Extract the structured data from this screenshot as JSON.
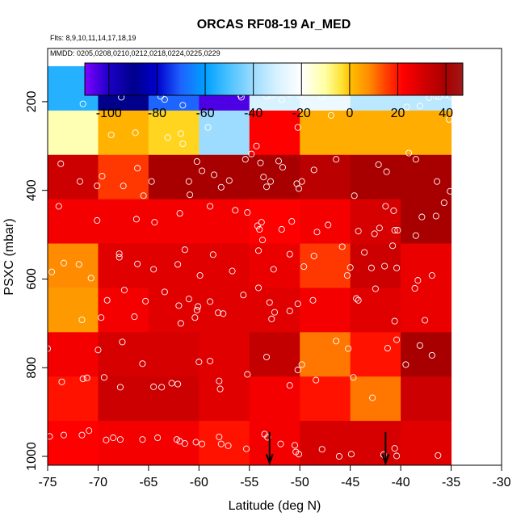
{
  "chart_data": {
    "type": "heatmap",
    "title": "ORCAS RF08-19 Ar_MED",
    "flights_note": "Flts: 8,9,10,11,14,17,18,19",
    "dates_note": "MMDD: 0205,0208,0210,0212,0218,0224,0225,0229",
    "xlabel": "Latitude (deg N)",
    "ylabel": "PSXC (mbar)",
    "xlim": [
      -75,
      -30
    ],
    "ylim": [
      1020,
      80
    ],
    "x_ticks": [
      -75,
      -70,
      -65,
      -60,
      -55,
      -50,
      -45,
      -40,
      -35,
      -30
    ],
    "y_ticks": [
      200,
      400,
      600,
      800,
      1000
    ],
    "colorbar": {
      "range": [
        -110,
        47
      ],
      "ticks": [
        -100,
        -80,
        -60,
        -40,
        -20,
        0,
        20,
        40
      ],
      "stops": [
        {
          "v": -110,
          "color": "#7f00ff"
        },
        {
          "v": -100,
          "color": "#1c00c8"
        },
        {
          "v": -90,
          "color": "#00008b"
        },
        {
          "v": -80,
          "color": "#0000cd"
        },
        {
          "v": -70,
          "color": "#1e64ff"
        },
        {
          "v": -60,
          "color": "#00a0ff"
        },
        {
          "v": -50,
          "color": "#4cc2ff"
        },
        {
          "v": -40,
          "color": "#9ddcff"
        },
        {
          "v": -30,
          "color": "#d8f2ff"
        },
        {
          "v": -20,
          "color": "#ffffff"
        },
        {
          "v": -10,
          "color": "#ffffa0"
        },
        {
          "v": -3,
          "color": "#ffe030"
        },
        {
          "v": 0,
          "color": "#ffc000"
        },
        {
          "v": 8,
          "color": "#ff8c00"
        },
        {
          "v": 15,
          "color": "#ff4000"
        },
        {
          "v": 22,
          "color": "#ff0000"
        },
        {
          "v": 32,
          "color": "#cc0000"
        },
        {
          "v": 40,
          "color": "#a80000"
        },
        {
          "v": 47,
          "color": "#a01818"
        }
      ]
    },
    "lat_edges": [
      -75,
      -70,
      -65,
      -60,
      -55,
      -50,
      -45,
      -40,
      -35
    ],
    "pressure_rows": [
      {
        "p": [
          120,
          220
        ],
        "values": [
          -55,
          -90,
          -70,
          -105,
          -30,
          -25,
          -35,
          -35
        ]
      },
      {
        "p": [
          220,
          320
        ],
        "values": [
          -12,
          2,
          -2,
          -40,
          22,
          3,
          3,
          3
        ]
      },
      {
        "p": [
          320,
          420
        ],
        "values": [
          32,
          16,
          40,
          40,
          40,
          36,
          40,
          40
        ]
      },
      {
        "p": [
          420,
          520
        ],
        "values": [
          24,
          24,
          24,
          24,
          22,
          24,
          30,
          40
        ]
      },
      {
        "p": [
          520,
          620
        ],
        "values": [
          8,
          28,
          28,
          28,
          26,
          16,
          32,
          26
        ]
      },
      {
        "p": [
          620,
          720
        ],
        "values": [
          6,
          24,
          28,
          28,
          28,
          24,
          28,
          26
        ]
      },
      {
        "p": [
          720,
          820
        ],
        "values": [
          24,
          30,
          30,
          28,
          34,
          10,
          20,
          40
        ]
      },
      {
        "p": [
          820,
          920
        ],
        "values": [
          20,
          32,
          32,
          28,
          24,
          20,
          10,
          32
        ]
      },
      {
        "p": [
          920,
          1020
        ],
        "values": [
          22,
          24,
          24,
          20,
          24,
          30,
          30,
          28
        ]
      }
    ],
    "points": [
      [
        -71.5,
        205
      ],
      [
        -67.7,
        190
      ],
      [
        -65.2,
        178
      ],
      [
        -63.8,
        188
      ],
      [
        -63.4,
        195
      ],
      [
        -61.6,
        208
      ],
      [
        -60.2,
        178
      ],
      [
        -55.7,
        175
      ],
      [
        -55.9,
        185
      ],
      [
        -55.8,
        190
      ],
      [
        -53.3,
        188
      ],
      [
        -52.8,
        186
      ],
      [
        -51.8,
        196
      ],
      [
        -51.0,
        183
      ],
      [
        -50.0,
        185
      ],
      [
        -47.8,
        189
      ],
      [
        -39.4,
        212
      ],
      [
        -38.1,
        210
      ],
      [
        -37.2,
        191
      ],
      [
        -36.2,
        189
      ],
      [
        -35.6,
        185
      ],
      [
        -35.1,
        188
      ],
      [
        -36.5,
        188
      ],
      [
        -68.7,
        275
      ],
      [
        -66.3,
        270
      ],
      [
        -63.1,
        281
      ],
      [
        -61.6,
        295
      ],
      [
        -59.1,
        258
      ],
      [
        -50.2,
        258
      ],
      [
        -46.9,
        231
      ],
      [
        -35.2,
        240
      ],
      [
        -73.7,
        340
      ],
      [
        -71.8,
        380
      ],
      [
        -69.6,
        368
      ],
      [
        -70.1,
        390
      ],
      [
        -66.1,
        350
      ],
      [
        -67.5,
        390
      ],
      [
        -65.5,
        412
      ],
      [
        -64.7,
        380
      ],
      [
        -61.8,
        272
      ],
      [
        -61.0,
        380
      ],
      [
        -60.9,
        410
      ],
      [
        -60.2,
        335
      ],
      [
        -59.7,
        356
      ],
      [
        -58.5,
        365
      ],
      [
        -57.8,
        393
      ],
      [
        -57.0,
        378
      ],
      [
        -55.4,
        330
      ],
      [
        -54.8,
        318
      ],
      [
        -54.3,
        300
      ],
      [
        -53.9,
        338
      ],
      [
        -53.6,
        370
      ],
      [
        -52.9,
        380
      ],
      [
        -53.3,
        392
      ],
      [
        -52.1,
        334
      ],
      [
        -51.7,
        348
      ],
      [
        -50.3,
        385
      ],
      [
        -50.1,
        396
      ],
      [
        -49.8,
        380
      ],
      [
        -48.6,
        354
      ],
      [
        -46.4,
        330
      ],
      [
        -44.6,
        412
      ],
      [
        -42.2,
        342
      ],
      [
        -41.4,
        358
      ],
      [
        -39.2,
        316
      ],
      [
        -38.5,
        330
      ],
      [
        -36.4,
        380
      ],
      [
        -35.1,
        402
      ],
      [
        -73.9,
        436
      ],
      [
        -70.1,
        468
      ],
      [
        -66.2,
        465
      ],
      [
        -64.4,
        472
      ],
      [
        -61.9,
        452
      ],
      [
        -58.9,
        436
      ],
      [
        -56.4,
        445
      ],
      [
        -55.2,
        450
      ],
      [
        -54.2,
        480
      ],
      [
        -54.0,
        488
      ],
      [
        -53.8,
        472
      ],
      [
        -51.8,
        488
      ],
      [
        -50.8,
        470
      ],
      [
        -48.3,
        494
      ],
      [
        -47.2,
        478
      ],
      [
        -44.2,
        492
      ],
      [
        -42.6,
        498
      ],
      [
        -42.1,
        485
      ],
      [
        -41.5,
        436
      ],
      [
        -40.7,
        446
      ],
      [
        -40.6,
        490
      ],
      [
        -40.3,
        490
      ],
      [
        -38.5,
        502
      ],
      [
        -37.9,
        460
      ],
      [
        -36.5,
        458
      ],
      [
        -35.7,
        428
      ],
      [
        -74.6,
        584
      ],
      [
        -73.4,
        564
      ],
      [
        -71.9,
        567
      ],
      [
        -70.7,
        598
      ],
      [
        -67.9,
        543
      ],
      [
        -67.9,
        551
      ],
      [
        -66.1,
        566
      ],
      [
        -64.5,
        578
      ],
      [
        -62.1,
        567
      ],
      [
        -61.4,
        534
      ],
      [
        -59.9,
        592
      ],
      [
        -58.6,
        545
      ],
      [
        -56.7,
        582
      ],
      [
        -54.1,
        536
      ],
      [
        -53.7,
        512
      ],
      [
        -52.6,
        578
      ],
      [
        -51.0,
        544
      ],
      [
        -49.6,
        572
      ],
      [
        -48.6,
        548
      ],
      [
        -45.8,
        527
      ],
      [
        -45.3,
        592
      ],
      [
        -45.0,
        574
      ],
      [
        -43.6,
        540
      ],
      [
        -42.9,
        575
      ],
      [
        -41.6,
        571
      ],
      [
        -40.8,
        525
      ],
      [
        -40.4,
        575
      ],
      [
        -38.3,
        603
      ],
      [
        -36.9,
        592
      ],
      [
        -71.6,
        692
      ],
      [
        -69.7,
        687
      ],
      [
        -69.1,
        648
      ],
      [
        -67.4,
        625
      ],
      [
        -66.4,
        685
      ],
      [
        -65.3,
        650
      ],
      [
        -63.4,
        629
      ],
      [
        -62.0,
        660
      ],
      [
        -61.8,
        700
      ],
      [
        -61.0,
        645
      ],
      [
        -60.4,
        687
      ],
      [
        -60.1,
        662
      ],
      [
        -60.2,
        670
      ],
      [
        -58.9,
        651
      ],
      [
        -58.1,
        676
      ],
      [
        -57.6,
        678
      ],
      [
        -55.6,
        636
      ],
      [
        -54.1,
        620
      ],
      [
        -53.0,
        653
      ],
      [
        -52.8,
        690
      ],
      [
        -52.5,
        675
      ],
      [
        -51.0,
        672
      ],
      [
        -50.2,
        656
      ],
      [
        -48.7,
        648
      ],
      [
        -44.4,
        644
      ],
      [
        -44.2,
        648
      ],
      [
        -42.5,
        622
      ],
      [
        -40.6,
        695
      ],
      [
        -38.6,
        621
      ],
      [
        -37.6,
        693
      ],
      [
        -75.0,
        757
      ],
      [
        -73.6,
        832
      ],
      [
        -71.5,
        825
      ],
      [
        -71.1,
        823
      ],
      [
        -70.0,
        760
      ],
      [
        -69.4,
        822
      ],
      [
        -67.8,
        844
      ],
      [
        -67.6,
        742
      ],
      [
        -65.6,
        791
      ],
      [
        -64.5,
        843
      ],
      [
        -63.7,
        844
      ],
      [
        -62.7,
        835
      ],
      [
        -62.1,
        837
      ],
      [
        -60.0,
        787
      ],
      [
        -58.9,
        785
      ],
      [
        -58.0,
        830
      ],
      [
        -57.9,
        848
      ],
      [
        -55.2,
        815
      ],
      [
        -53.3,
        776
      ],
      [
        -51.0,
        840
      ],
      [
        -50.2,
        805
      ],
      [
        -49.8,
        793
      ],
      [
        -48.4,
        828
      ],
      [
        -46.4,
        740
      ],
      [
        -45.2,
        757
      ],
      [
        -44.7,
        822
      ],
      [
        -42.8,
        868
      ],
      [
        -41.3,
        756
      ],
      [
        -40.4,
        737
      ],
      [
        -39.5,
        793
      ],
      [
        -38.1,
        750
      ],
      [
        -36.9,
        772
      ],
      [
        -74.8,
        955
      ],
      [
        -73.4,
        952
      ],
      [
        -71.6,
        952
      ],
      [
        -70.9,
        942
      ],
      [
        -69.2,
        963
      ],
      [
        -68.5,
        958
      ],
      [
        -67.8,
        962
      ],
      [
        -65.6,
        962
      ],
      [
        -64.1,
        958
      ],
      [
        -62.2,
        962
      ],
      [
        -61.9,
        966
      ],
      [
        -61.4,
        971
      ],
      [
        -60.3,
        968
      ],
      [
        -59.7,
        972
      ],
      [
        -58.0,
        956
      ],
      [
        -57.8,
        972
      ],
      [
        -57.1,
        976
      ],
      [
        -55.3,
        983
      ],
      [
        -53.5,
        950
      ],
      [
        -53.2,
        957
      ],
      [
        -51.9,
        972
      ],
      [
        -50.5,
        975
      ],
      [
        -50.4,
        990
      ],
      [
        -50.1,
        995
      ],
      [
        -47.8,
        984
      ],
      [
        -46.1,
        1000
      ],
      [
        -44.9,
        995
      ],
      [
        -41.7,
        996
      ],
      [
        -40.4,
        999
      ],
      [
        -40.6,
        982
      ],
      [
        -36.3,
        998
      ]
    ],
    "arrows": [
      -53.0,
      -41.5
    ]
  }
}
